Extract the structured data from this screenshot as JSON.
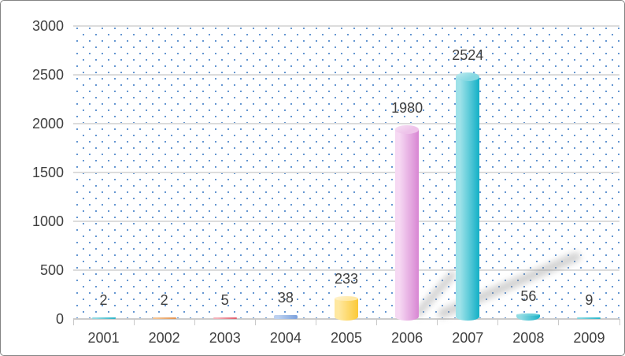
{
  "window": {
    "border_color": "#848484",
    "background_color": "#ffffff"
  },
  "chart_data": {
    "type": "bar",
    "subtype": "3d-cylinder",
    "title": "",
    "xlabel": "",
    "ylabel": "",
    "categories": [
      "2001",
      "2002",
      "2003",
      "2004",
      "2005",
      "2006",
      "2007",
      "2008",
      "2009"
    ],
    "values": [
      2,
      2,
      5,
      38,
      233,
      1980,
      2524,
      56,
      9
    ],
    "data_labels": [
      "2",
      "2",
      "5",
      "38",
      "233",
      "1980",
      "2524",
      "56",
      "9"
    ],
    "ylim": [
      0,
      3000
    ],
    "y_ticks": [
      0,
      500,
      1000,
      1500,
      2000,
      2500,
      3000
    ],
    "y_tick_labels": [
      "0",
      "500",
      "1000",
      "1500",
      "2000",
      "2500",
      "3000"
    ],
    "grid": true,
    "legend": false,
    "background_pattern": "blue-dot-grid",
    "points": [
      {
        "label": "2001",
        "value": 2,
        "color_light": "#8ed8e0",
        "color_dark": "#2ab3c6",
        "color_cap": null
      },
      {
        "label": "2002",
        "value": 2,
        "color_light": "#f3c18f",
        "color_dark": "#e3914e",
        "color_cap": null
      },
      {
        "label": "2003",
        "value": 5,
        "color_light": "#f4b0b8",
        "color_dark": "#e05a68",
        "color_cap": null
      },
      {
        "label": "2004",
        "value": 38,
        "color_light": "#bdd1f0",
        "color_dark": "#7aa0dc",
        "color_cap": "#aec6ea"
      },
      {
        "label": "2005",
        "value": 233,
        "color_light": "#ffe8a0",
        "color_dark": "#fbc937",
        "color_cap": "#ffe9a8"
      },
      {
        "label": "2006",
        "value": 1980,
        "color_light": "#f6d9f3",
        "color_dark": "#d886d3",
        "color_cap": "#eec3ea"
      },
      {
        "label": "2007",
        "value": 2524,
        "color_light": "#9fe2e9",
        "color_dark": "#12b0c6",
        "color_cap": "#85d8e2"
      },
      {
        "label": "2008",
        "value": 56,
        "color_light": "#8fdae2",
        "color_dark": "#17b1c7",
        "color_cap": "#63ced9"
      },
      {
        "label": "2009",
        "value": 9,
        "color_light": "#7dd3dd",
        "color_dark": "#27b5c9",
        "color_cap": null
      }
    ]
  },
  "styles": {
    "dot_color": "#5b8fce",
    "gridline_color": "#dcdcdc",
    "axis_color": "#cccccc",
    "tick_color": "#c9c9c9",
    "text_color": "#3f3f3f",
    "shadow_color": "rgba(140,140,140,0.38)"
  }
}
